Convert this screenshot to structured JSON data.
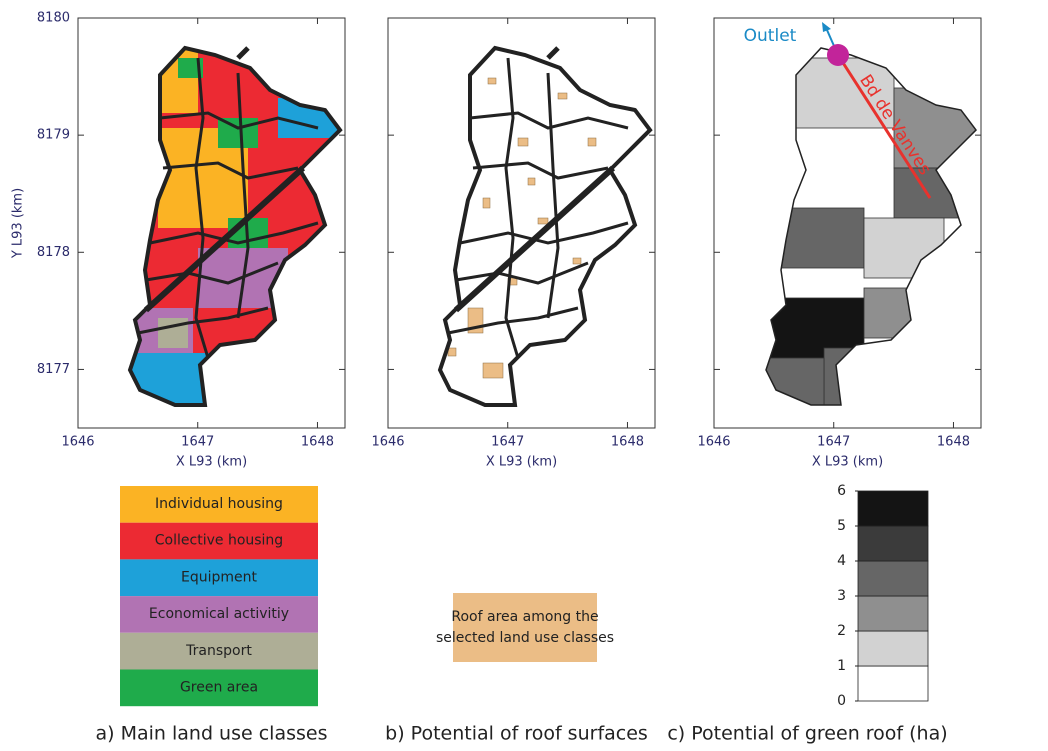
{
  "panels": [
    {
      "caption": "a) Main land use classes",
      "xlabel": "X L93 (km)",
      "ylabel": "Y L93 (km)",
      "xlim": [
        1646,
        1648.23
      ],
      "ylim": [
        8176.5,
        8180
      ],
      "xticks": [
        1646,
        1647,
        1648
      ],
      "yticks": [
        8177,
        8178,
        8179,
        8180
      ]
    },
    {
      "caption": "b) Potential of roof surfaces",
      "xlabel": "X L93 (km)",
      "xlim": [
        1646,
        1648.23
      ],
      "ylim": [
        8176.5,
        8180
      ],
      "xticks": [
        1646,
        1647,
        1648
      ]
    },
    {
      "caption": "c) Potential of green roof (ha)",
      "xlabel": "X L93 (km)",
      "xlim": [
        1646,
        1648.23
      ],
      "ylim": [
        8176.5,
        8180
      ],
      "xticks": [
        1646,
        1647,
        1648
      ],
      "annotations": [
        "Outlet",
        "Bd de Vanves"
      ]
    }
  ],
  "land_use_legend": [
    {
      "label": "Individual housing",
      "color": "#fbb324"
    },
    {
      "label": "Collective housing",
      "color": "#ec2a33"
    },
    {
      "label": "Equipment",
      "color": "#1ea1d9"
    },
    {
      "label": "Economical activitiy",
      "color": "#b173b3"
    },
    {
      "label": "Transport",
      "color": "#aeae96"
    },
    {
      "label": "Green area",
      "color": "#1fab4b"
    }
  ],
  "roof_legend": {
    "label": "Roof area among the selected land use classes",
    "color": "#ebbd86"
  },
  "colorbar": {
    "ylim": [
      0,
      6
    ],
    "yticks": [
      0,
      1,
      2,
      3,
      4,
      5,
      6
    ],
    "colors": [
      "#ffffff",
      "#d2d2d2",
      "#8f8f8f",
      "#666666",
      "#3b3b3b",
      "#141414"
    ]
  }
}
